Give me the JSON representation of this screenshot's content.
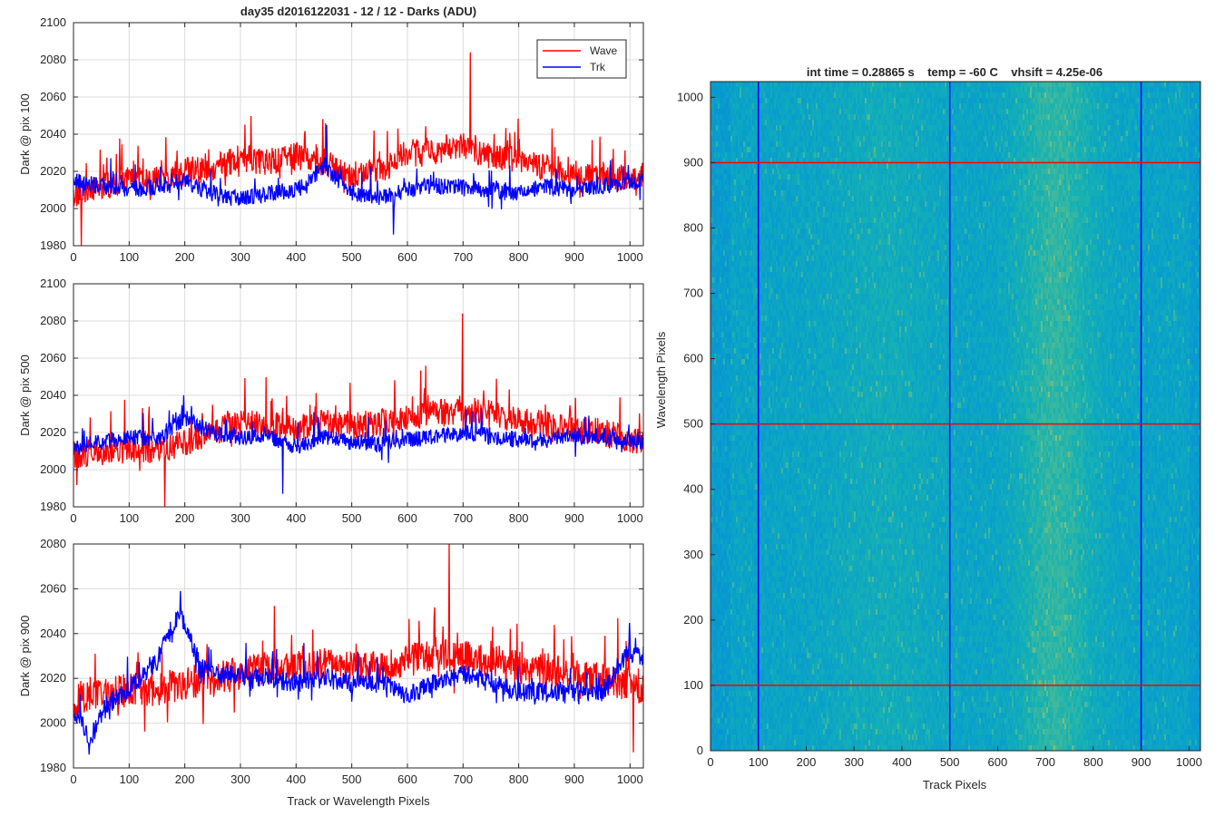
{
  "figure_title": "day35 d2016122031 - 12 / 12 - Darks (ADU)",
  "shared_xlabel": "Track or Wavelength Pixels",
  "colors": {
    "wave": "#ff0000",
    "trk": "#0000ff",
    "grid": "#dcdcdc",
    "axis": "#262626"
  },
  "chart_data": [
    {
      "type": "line",
      "panel": "top",
      "ylabel": "Dark @ pix 100",
      "xlim": [
        0,
        1024
      ],
      "ylim": [
        1980,
        2100
      ],
      "xticks": [
        0,
        100,
        200,
        300,
        400,
        500,
        600,
        700,
        800,
        900,
        1000
      ],
      "yticks": [
        1980,
        2000,
        2020,
        2040,
        2060,
        2080,
        2100
      ],
      "grid": true,
      "legend": {
        "position": "top-right",
        "entries": [
          "Wave",
          "Trk"
        ]
      },
      "series": [
        {
          "name": "Wave",
          "color": "#ff0000",
          "x_knots": [
            0,
            50,
            100,
            150,
            200,
            250,
            300,
            350,
            400,
            450,
            500,
            550,
            600,
            650,
            700,
            750,
            800,
            850,
            900,
            950,
            1024
          ],
          "y_mean": [
            2008,
            2012,
            2015,
            2016,
            2020,
            2022,
            2027,
            2025,
            2028,
            2025,
            2018,
            2020,
            2030,
            2030,
            2034,
            2028,
            2026,
            2022,
            2020,
            2018,
            2015
          ],
          "noise": 10,
          "max_point": {
            "x": 713,
            "y": 2084
          },
          "min_point": {
            "x": 14,
            "y": 1980
          }
        },
        {
          "name": "Trk",
          "color": "#0000ff",
          "x_knots": [
            0,
            50,
            100,
            150,
            200,
            250,
            300,
            350,
            400,
            450,
            500,
            550,
            600,
            650,
            700,
            750,
            800,
            850,
            900,
            950,
            1024
          ],
          "y_mean": [
            2015,
            2012,
            2010,
            2012,
            2015,
            2008,
            2005,
            2008,
            2010,
            2022,
            2008,
            2006,
            2010,
            2012,
            2012,
            2010,
            2008,
            2012,
            2010,
            2012,
            2015
          ],
          "noise": 6,
          "max_point": {
            "x": 455,
            "y": 2045
          },
          "min_point": {
            "x": 575,
            "y": 1986
          }
        }
      ]
    },
    {
      "type": "line",
      "panel": "middle",
      "ylabel": "Dark @ pix 500",
      "xlim": [
        0,
        1024
      ],
      "ylim": [
        1980,
        2100
      ],
      "xticks": [
        0,
        100,
        200,
        300,
        400,
        500,
        600,
        700,
        800,
        900,
        1000
      ],
      "yticks": [
        1980,
        2000,
        2020,
        2040,
        2060,
        2080,
        2100
      ],
      "grid": true,
      "series": [
        {
          "name": "Wave",
          "color": "#ff0000",
          "x_knots": [
            0,
            50,
            100,
            150,
            200,
            250,
            300,
            350,
            400,
            450,
            500,
            550,
            600,
            650,
            700,
            750,
            800,
            850,
            900,
            950,
            1024
          ],
          "y_mean": [
            2008,
            2010,
            2010,
            2010,
            2015,
            2020,
            2025,
            2024,
            2022,
            2025,
            2024,
            2025,
            2028,
            2030,
            2032,
            2030,
            2026,
            2024,
            2022,
            2020,
            2015
          ],
          "noise": 10,
          "max_point": {
            "x": 699,
            "y": 2084
          },
          "min_point": {
            "x": 164,
            "y": 1980
          }
        },
        {
          "name": "Trk",
          "color": "#0000ff",
          "x_knots": [
            0,
            50,
            100,
            150,
            200,
            250,
            300,
            350,
            400,
            450,
            500,
            550,
            600,
            650,
            700,
            750,
            800,
            850,
            900,
            950,
            1024
          ],
          "y_mean": [
            2012,
            2015,
            2018,
            2016,
            2028,
            2020,
            2018,
            2018,
            2012,
            2018,
            2015,
            2014,
            2016,
            2018,
            2020,
            2018,
            2016,
            2016,
            2018,
            2018,
            2015
          ],
          "noise": 6,
          "max_point": {
            "x": 198,
            "y": 2040
          },
          "min_point": {
            "x": 376,
            "y": 1987
          }
        }
      ]
    },
    {
      "type": "line",
      "panel": "bottom",
      "ylabel": "Dark @ pix 900",
      "xlabel": "Track or Wavelength Pixels",
      "xlim": [
        0,
        1024
      ],
      "ylim": [
        1980,
        2080
      ],
      "xticks": [
        0,
        100,
        200,
        300,
        400,
        500,
        600,
        700,
        800,
        900,
        1000
      ],
      "yticks": [
        1980,
        2000,
        2020,
        2040,
        2060,
        2080
      ],
      "grid": true,
      "series": [
        {
          "name": "Wave",
          "color": "#ff0000",
          "x_knots": [
            0,
            50,
            100,
            150,
            200,
            250,
            300,
            350,
            400,
            450,
            500,
            550,
            600,
            650,
            700,
            750,
            800,
            850,
            900,
            950,
            1024
          ],
          "y_mean": [
            2010,
            2012,
            2015,
            2015,
            2018,
            2020,
            2022,
            2024,
            2025,
            2026,
            2024,
            2025,
            2028,
            2030,
            2030,
            2028,
            2025,
            2024,
            2022,
            2020,
            2015
          ],
          "noise": 10,
          "max_point": {
            "x": 675,
            "y": 2080
          },
          "min_point": {
            "x": 1006,
            "y": 1987
          }
        },
        {
          "name": "Trk",
          "color": "#0000ff",
          "x_knots": [
            0,
            30,
            60,
            100,
            150,
            190,
            230,
            250,
            300,
            350,
            400,
            450,
            500,
            550,
            600,
            650,
            700,
            750,
            800,
            850,
            900,
            950,
            990,
            1024
          ],
          "y_mean": [
            2005,
            1993,
            2008,
            2015,
            2028,
            2050,
            2025,
            2022,
            2022,
            2020,
            2018,
            2020,
            2018,
            2018,
            2012,
            2018,
            2022,
            2018,
            2014,
            2014,
            2014,
            2014,
            2030,
            2030
          ],
          "noise": 6,
          "max_point": {
            "x": 192,
            "y": 2059
          },
          "min_point": {
            "x": 28,
            "y": 1986
          }
        }
      ]
    },
    {
      "type": "heatmap",
      "title": "int time = 0.28865 s    temp = -60 C    vhsift = 4.25e-06",
      "xlabel": "Track Pixels",
      "ylabel": "Wavelength Pixels",
      "xlim": [
        0,
        1024
      ],
      "ylim": [
        0,
        1024
      ],
      "xticks": [
        0,
        100,
        200,
        300,
        400,
        500,
        600,
        700,
        800,
        900,
        1000
      ],
      "yticks": [
        0,
        100,
        200,
        300,
        400,
        500,
        600,
        700,
        800,
        900,
        1000
      ],
      "colormap": "parula",
      "bright_band_center_x": 720,
      "bright_band_width": 80,
      "secondary_band_center_x": 360,
      "vertical_lines": {
        "color": "#0000ff",
        "x": [
          100,
          500,
          900
        ]
      },
      "horizontal_lines": {
        "color": "#ff0000",
        "y": [
          100,
          500,
          900
        ]
      }
    }
  ]
}
